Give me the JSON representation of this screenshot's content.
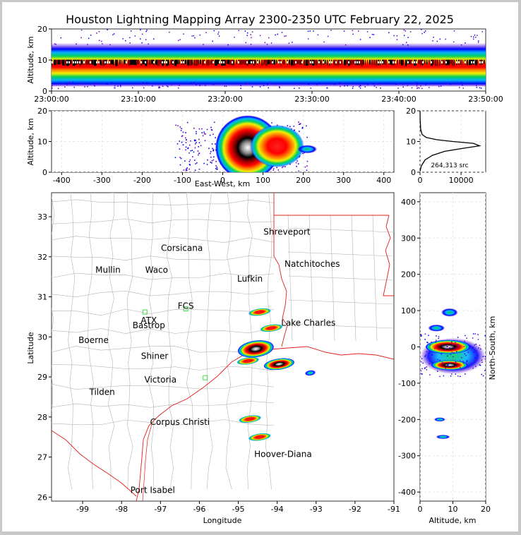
{
  "title": "Houston Lightning Mapping Array 2300-2350 UTC February 22, 2025",
  "colors": {
    "background": "#ffffff",
    "border": "#c8c8c8",
    "county_lines": "#b4b4b4",
    "coast_and_state": "#e0201a",
    "station": "#44dd44",
    "density_scale": [
      "#6a00c8",
      "#0000ff",
      "#00b0ff",
      "#00d060",
      "#f0f000",
      "#ff8000",
      "#ff0000",
      "#8b0000",
      "#000000",
      "#ffffff"
    ]
  },
  "chart_data": [
    {
      "id": "time_height",
      "type": "heatmap",
      "ylabel": "Altitude, km",
      "xticks": [
        "23:00:00",
        "23:10:00",
        "23:20:00",
        "23:30:00",
        "23:40:00",
        "23:50:00"
      ],
      "yticks": [
        0,
        10,
        20
      ],
      "xlim": [
        "23:00:00",
        "23:50:00"
      ],
      "ylim": [
        0,
        20
      ],
      "density_peak_altitude_km": 9
    },
    {
      "id": "east_west_height",
      "type": "heatmap",
      "xlabel": "East-West, km",
      "ylabel": "Altitude, km",
      "xticks": [
        -400,
        -300,
        -200,
        -100,
        0,
        100,
        200,
        300,
        400
      ],
      "yticks": [
        0,
        10,
        20
      ],
      "xlim": [
        -425,
        425
      ],
      "ylim": [
        0,
        20
      ],
      "cores": [
        {
          "x_km": 60,
          "altitude_km": 9
        },
        {
          "x_km": 135,
          "altitude_km": 9
        }
      ]
    },
    {
      "id": "altitude_histogram",
      "type": "line",
      "annotation": "264,313 src",
      "xticks": [
        0,
        10000
      ],
      "yticks": [
        0,
        10,
        20
      ],
      "xlim": [
        0,
        16000
      ],
      "ylim": [
        0,
        20
      ],
      "points": [
        [
          0,
          0.3
        ],
        [
          300,
          2
        ],
        [
          1200,
          4
        ],
        [
          3000,
          5.5
        ],
        [
          6000,
          6.8
        ],
        [
          10500,
          7.8
        ],
        [
          14500,
          8.6
        ],
        [
          13000,
          9.4
        ],
        [
          8000,
          10
        ],
        [
          4000,
          10.6
        ],
        [
          1500,
          11.3
        ],
        [
          500,
          12.3
        ],
        [
          150,
          14
        ],
        [
          40,
          17
        ],
        [
          0,
          20
        ]
      ]
    },
    {
      "id": "plan_view",
      "type": "heatmap",
      "xlabel": "Longitude",
      "ylabel": "Latitude",
      "xticks": [
        -99,
        -98,
        -97,
        -96,
        -95,
        -94,
        -93,
        -92,
        -91
      ],
      "yticks": [
        26,
        27,
        28,
        29,
        30,
        31,
        32,
        33
      ],
      "xlim": [
        -99.8,
        -91
      ],
      "ylim": [
        25.9,
        33.6
      ],
      "cities": [
        {
          "name": "Shreveport",
          "lon": -93.75,
          "lat": 32.55
        },
        {
          "name": "Corsicana",
          "lon": -96.45,
          "lat": 32.15
        },
        {
          "name": "Natchitoches",
          "lon": -93.1,
          "lat": 31.75
        },
        {
          "name": "Waco",
          "lon": -97.1,
          "lat": 31.6
        },
        {
          "name": "Lufkin",
          "lon": -94.7,
          "lat": 31.38
        },
        {
          "name": "FCS",
          "lon": -96.35,
          "lat": 30.7
        },
        {
          "name": "Bastrop",
          "lon": -97.3,
          "lat": 30.22
        },
        {
          "name": "Lake Charles",
          "lon": -93.2,
          "lat": 30.28
        },
        {
          "name": "Boerne",
          "lon": -98.72,
          "lat": 29.85
        },
        {
          "name": "Shiner",
          "lon": -97.15,
          "lat": 29.45
        },
        {
          "name": "Victoria",
          "lon": -97.0,
          "lat": 28.86
        },
        {
          "name": "Tilden",
          "lon": -98.5,
          "lat": 28.55
        },
        {
          "name": "Corpus Christi",
          "lon": -96.5,
          "lat": 27.8
        },
        {
          "name": "Port Isabel",
          "lon": -97.2,
          "lat": 26.1
        }
      ],
      "labels_colored": [
        {
          "name": "Mullin",
          "lon": -98.35,
          "lat": 31.6,
          "color": "#f08a4a"
        },
        {
          "name": "ATX",
          "lon": -97.3,
          "lat": 30.34,
          "color": "#f08a4a"
        },
        {
          "name": "Hoover-Diana",
          "lon": -93.85,
          "lat": 27.0,
          "color": "#1f1fd8"
        }
      ],
      "stations": [
        {
          "lon": -97.4,
          "lat": 30.62
        },
        {
          "lon": -96.35,
          "lat": 30.7
        },
        {
          "lon": -95.85,
          "lat": 28.98
        }
      ],
      "cells": [
        {
          "lon": -94.55,
          "lat": 29.7,
          "size": "large"
        },
        {
          "lon": -93.95,
          "lat": 29.32,
          "size": "medium"
        },
        {
          "lon": -94.45,
          "lat": 30.62,
          "size": "small"
        },
        {
          "lon": -94.15,
          "lat": 30.22,
          "size": "small"
        },
        {
          "lon": -94.75,
          "lat": 29.4,
          "size": "small"
        },
        {
          "lon": -94.7,
          "lat": 27.95,
          "size": "small"
        },
        {
          "lon": -94.45,
          "lat": 27.5,
          "size": "small"
        },
        {
          "lon": -93.15,
          "lat": 29.1,
          "size": "tiny"
        }
      ]
    },
    {
      "id": "north_south_height",
      "type": "heatmap",
      "xlabel": "Altitude, km",
      "ylabel": "North-South, km",
      "xticks": [
        0,
        10,
        20
      ],
      "yticks": [
        -400,
        -300,
        -200,
        -100,
        0,
        100,
        200,
        300,
        400
      ],
      "xlim": [
        0,
        20
      ],
      "ylim": [
        -425,
        425
      ],
      "cores": [
        {
          "y_km": 0,
          "altitude_km": 8
        },
        {
          "y_km": -50,
          "altitude_km": 9
        }
      ]
    }
  ]
}
